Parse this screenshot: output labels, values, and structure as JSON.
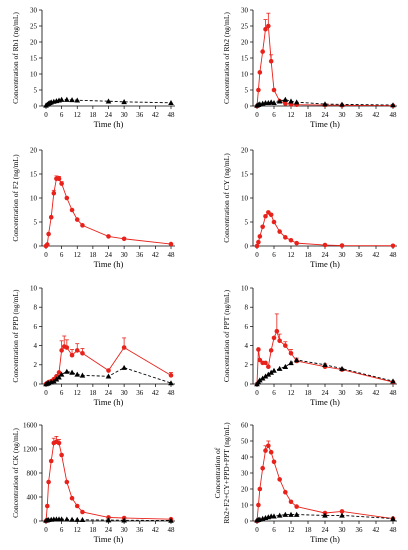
{
  "colors": {
    "red": "#e8221b",
    "black": "#000000"
  },
  "chart_data": [
    {
      "type": "line",
      "ylabel_lines": [
        "Concentration of Rb1 (ng/mL)"
      ],
      "xlabel": "Time (h)",
      "xlim": [
        0,
        48
      ],
      "xticks": [
        0,
        6,
        12,
        18,
        24,
        30,
        36,
        42,
        48
      ],
      "ylim": [
        0,
        30
      ],
      "yticks": [
        0,
        5,
        10,
        15,
        20,
        25,
        30
      ],
      "series": [
        {
          "color": "black",
          "marker": "triangle",
          "dash": true,
          "x": [
            0,
            0.5,
            1,
            1.5,
            2,
            3,
            4,
            5,
            6,
            8,
            10,
            12,
            24,
            30,
            48
          ],
          "y": [
            0.2,
            0.5,
            0.8,
            1.0,
            1.2,
            1.4,
            1.6,
            1.8,
            2.0,
            2.0,
            1.9,
            1.8,
            1.5,
            1.3,
            1.0
          ]
        }
      ]
    },
    {
      "type": "line",
      "ylabel_lines": [
        "Concentration of Rb2 (ng/mL)"
      ],
      "xlabel": "Time (h)",
      "xlim": [
        0,
        48
      ],
      "xticks": [
        0,
        6,
        12,
        18,
        24,
        30,
        36,
        42,
        48
      ],
      "ylim": [
        0,
        30
      ],
      "yticks": [
        0,
        5,
        10,
        15,
        20,
        25,
        30
      ],
      "series": [
        {
          "color": "red",
          "marker": "circle",
          "dash": false,
          "x": [
            0,
            0.5,
            1,
            2,
            3,
            4,
            5,
            6,
            8,
            10,
            12,
            14,
            24,
            30,
            48
          ],
          "y": [
            0,
            5,
            10.5,
            17,
            24,
            25,
            14,
            5,
            1.5,
            0.8,
            0.5,
            0.4,
            0.3,
            0.2,
            0.1
          ],
          "err": [
            0,
            0,
            0,
            0,
            3,
            4,
            2,
            0,
            0,
            0,
            0,
            0,
            0,
            0,
            0
          ]
        },
        {
          "color": "black",
          "marker": "triangle",
          "dash": true,
          "x": [
            0,
            0.5,
            1,
            2,
            3,
            4,
            5,
            6,
            8,
            10,
            12,
            14,
            24,
            30,
            48
          ],
          "y": [
            0.2,
            0.4,
            0.6,
            0.8,
            1.0,
            1.0,
            1.2,
            1.0,
            1.5,
            2.0,
            1.5,
            1.2,
            0.6,
            0.5,
            0.3
          ]
        }
      ]
    },
    {
      "type": "line",
      "ylabel_lines": [
        "Concentration of F2 (ng/mL)"
      ],
      "xlabel": "Time (h)",
      "xlim": [
        0,
        48
      ],
      "xticks": [
        0,
        6,
        12,
        18,
        24,
        30,
        36,
        42,
        48
      ],
      "ylim": [
        0,
        20
      ],
      "yticks": [
        0,
        5,
        10,
        15,
        20
      ],
      "series": [
        {
          "color": "red",
          "marker": "circle",
          "dash": false,
          "x": [
            0,
            0.5,
            1,
            2,
            3,
            4,
            5,
            6,
            8,
            10,
            12,
            14,
            24,
            30,
            48
          ],
          "y": [
            0,
            0.3,
            2.5,
            6,
            11,
            14,
            14,
            13,
            10,
            7.5,
            5.5,
            4.3,
            2.0,
            1.5,
            0.4
          ],
          "err": [
            0,
            0,
            0,
            0,
            0.6,
            0.6,
            0.5,
            0.4,
            0,
            0,
            0,
            0,
            0,
            0,
            0
          ]
        }
      ]
    },
    {
      "type": "line",
      "ylabel_lines": [
        "Concentration of CY (ng/mL)"
      ],
      "xlabel": "Time (h)",
      "xlim": [
        0,
        48
      ],
      "xticks": [
        0,
        6,
        12,
        18,
        24,
        30,
        36,
        42,
        48
      ],
      "ylim": [
        0,
        20
      ],
      "yticks": [
        0,
        5,
        10,
        15,
        20
      ],
      "series": [
        {
          "color": "red",
          "marker": "circle",
          "dash": false,
          "x": [
            0,
            0.5,
            1,
            2,
            3,
            4,
            5,
            6,
            8,
            10,
            12,
            14,
            24,
            30,
            48
          ],
          "y": [
            0,
            0.8,
            2,
            4,
            6.2,
            7,
            6.5,
            5,
            3,
            1.8,
            1.2,
            0.6,
            0.2,
            0.1,
            0.05
          ]
        }
      ]
    },
    {
      "type": "line",
      "ylabel_lines": [
        "Concentration of PPD (ng/mL)"
      ],
      "xlabel": "Time (h)",
      "xlim": [
        0,
        48
      ],
      "xticks": [
        0,
        6,
        12,
        18,
        24,
        30,
        36,
        42,
        48
      ],
      "ylim": [
        0,
        10
      ],
      "yticks": [
        0,
        2,
        4,
        6,
        8,
        10
      ],
      "series": [
        {
          "color": "red",
          "marker": "circle",
          "dash": false,
          "x": [
            0,
            0.5,
            1,
            2,
            3,
            4,
            5,
            6,
            7,
            8,
            10,
            12,
            14,
            24,
            30,
            48
          ],
          "y": [
            0,
            0.1,
            0.2,
            0.3,
            0.5,
            0.8,
            1.2,
            3.5,
            3.9,
            3.8,
            3.0,
            3.5,
            3.2,
            1.4,
            3.8,
            0.9
          ],
          "err": [
            0,
            0,
            0,
            0,
            0,
            0,
            0,
            1.0,
            1.1,
            0.8,
            0.6,
            0.7,
            0.5,
            0,
            1.0,
            0.3
          ]
        },
        {
          "color": "black",
          "marker": "triangle",
          "dash": true,
          "x": [
            0,
            0.5,
            1,
            2,
            3,
            4,
            5,
            6,
            8,
            10,
            12,
            14,
            24,
            30,
            48
          ],
          "y": [
            0,
            0.05,
            0.1,
            0.2,
            0.3,
            0.5,
            0.7,
            1.0,
            1.3,
            1.2,
            1.0,
            0.9,
            0.8,
            1.7,
            0.1
          ]
        }
      ]
    },
    {
      "type": "line",
      "ylabel_lines": [
        "Concentration of PPT (ng/mL)"
      ],
      "xlabel": "Time (h)",
      "xlim": [
        0,
        48
      ],
      "xticks": [
        0,
        6,
        12,
        18,
        24,
        30,
        36,
        42,
        48
      ],
      "ylim": [
        0,
        10
      ],
      "yticks": [
        0,
        2,
        4,
        6,
        8,
        10
      ],
      "series": [
        {
          "color": "red",
          "marker": "circle",
          "dash": false,
          "x": [
            0,
            0.5,
            1,
            2,
            3,
            4,
            5,
            6,
            7,
            8,
            10,
            12,
            14,
            24,
            30,
            48
          ],
          "y": [
            0,
            3.6,
            2.5,
            2.2,
            2.2,
            1.8,
            3.5,
            4.8,
            5.5,
            4.5,
            4.0,
            3.2,
            2.4,
            1.8,
            1.5,
            0.2
          ],
          "err": [
            0,
            0,
            0,
            0,
            0,
            0,
            0,
            0,
            1.8,
            0.7,
            0.4,
            0.4,
            0.3,
            0.3,
            0,
            0
          ]
        },
        {
          "color": "black",
          "marker": "triangle",
          "dash": true,
          "x": [
            0,
            0.5,
            1,
            2,
            3,
            4,
            5,
            6,
            8,
            10,
            12,
            14,
            24,
            30,
            48
          ],
          "y": [
            0,
            0.2,
            0.4,
            0.6,
            0.8,
            1.0,
            1.2,
            1.4,
            1.6,
            1.8,
            2.2,
            2.5,
            2.0,
            1.6,
            0.3
          ]
        }
      ]
    },
    {
      "type": "line",
      "ylabel_lines": [
        "Concentration of CK (ng/mL)"
      ],
      "xlabel": "Time (h)",
      "xlim": [
        0,
        48
      ],
      "xticks": [
        0,
        6,
        12,
        18,
        24,
        30,
        36,
        42,
        48
      ],
      "ylim": [
        0,
        1600
      ],
      "yticks": [
        0,
        400,
        800,
        1200,
        1600
      ],
      "series": [
        {
          "color": "red",
          "marker": "circle",
          "dash": false,
          "x": [
            0,
            0.5,
            1,
            2,
            3,
            4,
            5,
            6,
            8,
            10,
            12,
            14,
            24,
            30,
            48
          ],
          "y": [
            0,
            250,
            650,
            1000,
            1300,
            1320,
            1300,
            1100,
            650,
            380,
            250,
            150,
            60,
            50,
            30
          ],
          "err": [
            0,
            0,
            0,
            0,
            80,
            90,
            60,
            0,
            0,
            0,
            0,
            0,
            0,
            0,
            0
          ]
        },
        {
          "color": "black",
          "marker": "triangle",
          "dash": true,
          "x": [
            0,
            0.5,
            1,
            2,
            3,
            4,
            5,
            6,
            8,
            10,
            12,
            14,
            24,
            30,
            48
          ],
          "y": [
            10,
            15,
            20,
            25,
            30,
            30,
            30,
            30,
            28,
            25,
            22,
            20,
            15,
            12,
            8
          ]
        }
      ]
    },
    {
      "type": "line",
      "ylabel_lines": [
        "Concentration of",
        "Rb2+F2+CY+PPD+PPT (ng/mL)"
      ],
      "xlabel": "Time (h)",
      "xlim": [
        0,
        48
      ],
      "xticks": [
        0,
        6,
        12,
        18,
        24,
        30,
        36,
        42,
        48
      ],
      "ylim": [
        0,
        60
      ],
      "yticks": [
        0,
        10,
        20,
        30,
        40,
        50,
        60
      ],
      "series": [
        {
          "color": "red",
          "marker": "circle",
          "dash": false,
          "x": [
            0,
            0.5,
            1,
            2,
            3,
            4,
            5,
            6,
            8,
            10,
            12,
            14,
            24,
            30,
            48
          ],
          "y": [
            0,
            10,
            20,
            33,
            44,
            47,
            43,
            37,
            26,
            18,
            12,
            9,
            5,
            6,
            1.5
          ],
          "err": [
            0,
            0,
            0,
            0,
            3,
            3,
            0,
            0,
            0,
            0,
            0,
            0,
            0,
            0,
            0
          ]
        },
        {
          "color": "black",
          "marker": "triangle",
          "dash": true,
          "x": [
            0,
            0.5,
            1,
            2,
            3,
            4,
            5,
            6,
            8,
            10,
            12,
            14,
            24,
            30,
            48
          ],
          "y": [
            0.5,
            0.8,
            1.0,
            1.5,
            2,
            2.5,
            3,
            3,
            3.5,
            4,
            4,
            4,
            3.5,
            3.5,
            1.5
          ]
        }
      ]
    }
  ]
}
